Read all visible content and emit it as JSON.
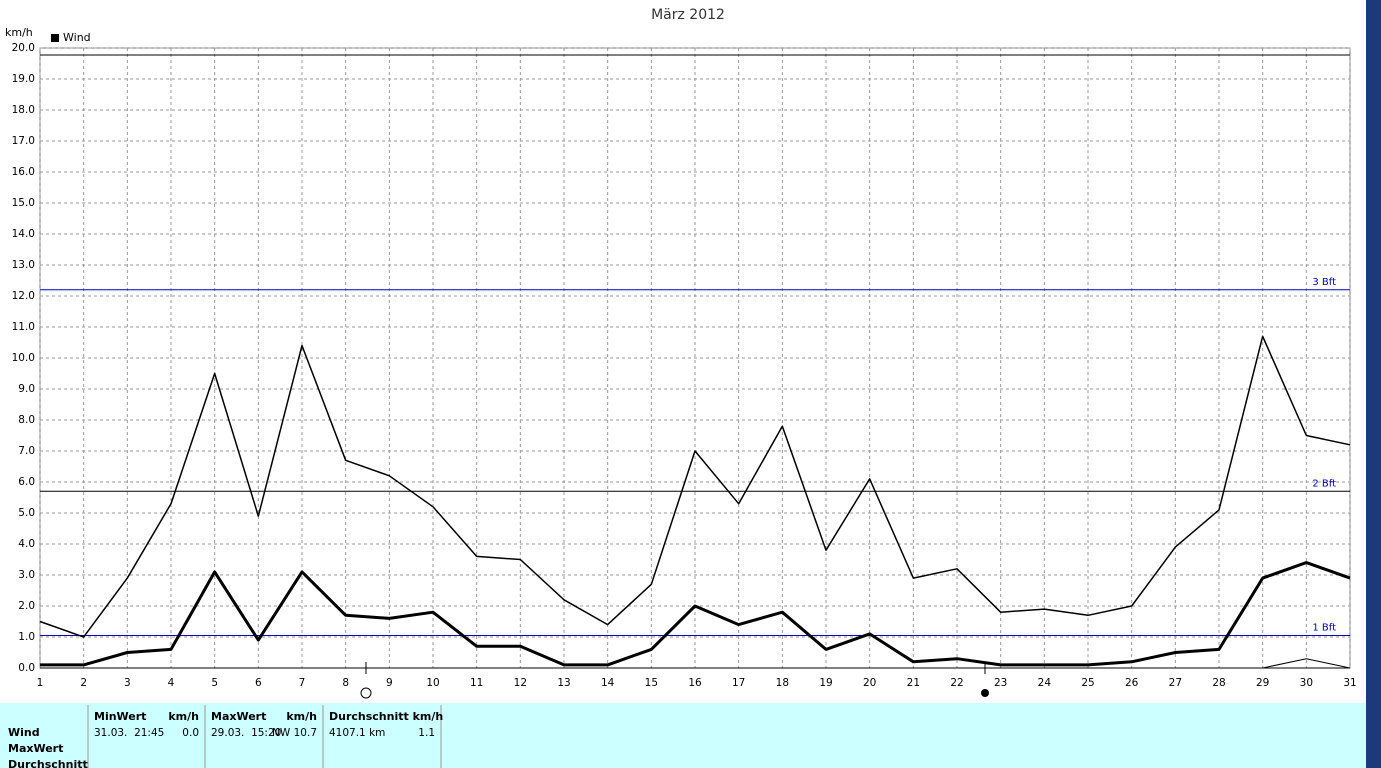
{
  "chart_data": {
    "type": "line",
    "title": "März 2012",
    "y_unit": "km/h",
    "legend": "Wind",
    "categories": [
      "1",
      "2",
      "3",
      "4",
      "5",
      "6",
      "7",
      "8",
      "9",
      "10",
      "11",
      "12",
      "13",
      "14",
      "15",
      "16",
      "17",
      "18",
      "19",
      "20",
      "21",
      "22",
      "23",
      "24",
      "25",
      "26",
      "27",
      "28",
      "29",
      "30",
      "31"
    ],
    "series": [
      {
        "color": "#000000",
        "width": 1.5,
        "values": [
          1.5,
          1.0,
          2.9,
          5.3,
          9.5,
          4.9,
          10.4,
          6.7,
          6.2,
          5.2,
          3.6,
          3.5,
          2.2,
          1.4,
          2.7,
          7.0,
          5.3,
          7.8,
          3.8,
          6.1,
          2.9,
          3.2,
          1.8,
          1.9,
          1.7,
          2.0,
          3.9,
          5.1,
          10.7,
          7.5,
          7.2
        ]
      },
      {
        "color": "#000000",
        "width": 3,
        "values": [
          0.1,
          0.1,
          0.5,
          0.6,
          3.1,
          0.9,
          3.1,
          1.7,
          1.6,
          1.8,
          0.7,
          0.7,
          0.1,
          0.1,
          0.6,
          2.0,
          1.4,
          1.8,
          0.6,
          1.1,
          0.2,
          0.3,
          0.1,
          0.1,
          0.1,
          0.2,
          0.5,
          0.6,
          2.9,
          3.4,
          2.9
        ]
      },
      {
        "color": "#000000",
        "width": 1,
        "values": [
          0,
          0,
          0,
          0,
          0,
          0,
          0,
          0,
          0,
          0,
          0,
          0,
          0,
          0,
          0,
          0,
          0,
          0,
          0,
          0,
          0,
          0,
          0,
          0,
          0,
          0,
          0,
          0,
          0,
          0.3,
          0
        ]
      }
    ],
    "ylim": [
      0,
      20
    ],
    "yticks": [
      {
        "value": 0,
        "label": "0.0"
      },
      {
        "value": 1,
        "label": "1.0"
      },
      {
        "value": 2,
        "label": "2.0"
      },
      {
        "value": 3,
        "label": "3.0"
      },
      {
        "value": 4,
        "label": "4.0"
      },
      {
        "value": 5,
        "label": "5.0"
      },
      {
        "value": 6,
        "label": "6.0"
      },
      {
        "value": 7,
        "label": "7.0"
      },
      {
        "value": 8,
        "label": "8.0"
      },
      {
        "value": 9,
        "label": "9.0"
      },
      {
        "value": 10,
        "label": "10.0"
      },
      {
        "value": 11,
        "label": "11.0"
      },
      {
        "value": 12,
        "label": "12.0"
      },
      {
        "value": 13,
        "label": "13.0"
      },
      {
        "value": 14,
        "label": "14.0"
      },
      {
        "value": 15,
        "label": "15.0"
      },
      {
        "value": 16,
        "label": "16.0"
      },
      {
        "value": 17,
        "label": "17.0"
      },
      {
        "value": 18,
        "label": "18.0"
      },
      {
        "value": 19,
        "label": "19.0"
      },
      {
        "value": 20,
        "label": "20.0"
      }
    ],
    "grid": true,
    "reference_lines": [
      {
        "value": 1.05,
        "label": "1 Bft",
        "color": "#0000c0"
      },
      {
        "value": 5.7,
        "label": "2 Bft",
        "color": "#000000"
      },
      {
        "value": 12.2,
        "label": "3 Bft",
        "color": "#0000c0"
      }
    ]
  },
  "stats": {
    "row_labels": [
      "Wind",
      "MaxWert",
      "Durchschnitt"
    ],
    "groups": [
      {
        "headers": [
          "MinWert",
          "km/h"
        ],
        "values": [
          "31.03.  21:45",
          "0.0"
        ]
      },
      {
        "headers": [
          "MaxWert",
          "km/h"
        ],
        "values": [
          "29.03.  15:20",
          "NW 10.7"
        ]
      },
      {
        "headers": [
          "Durchschnitt km/h"
        ],
        "values": [
          "4107.1 km",
          "1.1"
        ]
      }
    ]
  }
}
